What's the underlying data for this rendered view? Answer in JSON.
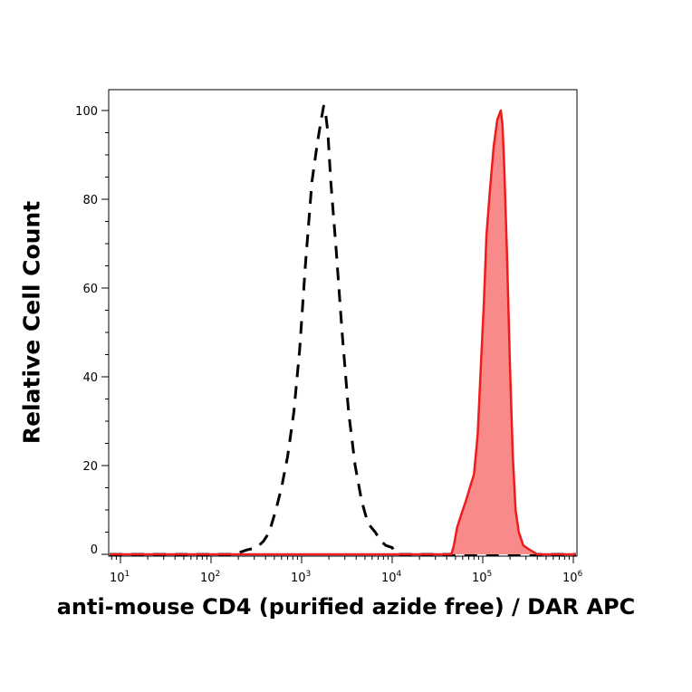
{
  "chart_data": {
    "type": "area",
    "xlabel": "anti-mouse CD4 (purified azide free) / DAR APC",
    "ylabel": "Relative Cell Count",
    "x_scale": "log",
    "xlim": [
      5,
      1100000
    ],
    "ylim": [
      0,
      105
    ],
    "x_ticks": [
      {
        "value": 10,
        "base": "10",
        "exp": "1"
      },
      {
        "value": 100,
        "base": "10",
        "exp": "2"
      },
      {
        "value": 1000,
        "base": "10",
        "exp": "3"
      },
      {
        "value": 10000,
        "base": "10",
        "exp": "4"
      },
      {
        "value": 100000,
        "base": "10",
        "exp": "5"
      },
      {
        "value": 1000000,
        "base": "10",
        "exp": "6"
      }
    ],
    "y_ticks": [
      {
        "value": 0,
        "label": "0"
      },
      {
        "value": 20,
        "label": "20"
      },
      {
        "value": 40,
        "label": "40"
      },
      {
        "value": 60,
        "label": "60"
      },
      {
        "value": 80,
        "label": "80"
      },
      {
        "value": 100,
        "label": "100"
      }
    ],
    "series": [
      {
        "style": "dashed-outline",
        "color": "#000000",
        "x": [
          5,
          180,
          250,
          320,
          380,
          440,
          520,
          600,
          700,
          820,
          950,
          1100,
          1300,
          1500,
          1650,
          1750,
          1850,
          1950,
          2100,
          2400,
          2800,
          3300,
          3900,
          4600,
          5400,
          6500,
          7500,
          8500,
          10000,
          11000,
          1100000
        ],
        "y": [
          0,
          0,
          1,
          1.5,
          3,
          5,
          10,
          15,
          22,
          32,
          46,
          65,
          84,
          93,
          98,
          101,
          99,
          95,
          84,
          69,
          50,
          32,
          20,
          12,
          7,
          5,
          3,
          2,
          1.5,
          0,
          0
        ]
      },
      {
        "style": "filled",
        "color": "#ee1c1c",
        "fill": "#f88a8a",
        "x": [
          5,
          45000,
          48000,
          52000,
          58000,
          65000,
          72000,
          80000,
          88000,
          95000,
          103000,
          110000,
          120000,
          132000,
          145000,
          158000,
          165000,
          172000,
          185000,
          200000,
          215000,
          230000,
          250000,
          280000,
          330000,
          400000,
          1100000
        ],
        "y": [
          0,
          0,
          2,
          6,
          9,
          12,
          15,
          18,
          27,
          42,
          57,
          72,
          82,
          92,
          98,
          100,
          97,
          88,
          68,
          42,
          22,
          10,
          5,
          2,
          1,
          0,
          0
        ]
      }
    ]
  }
}
